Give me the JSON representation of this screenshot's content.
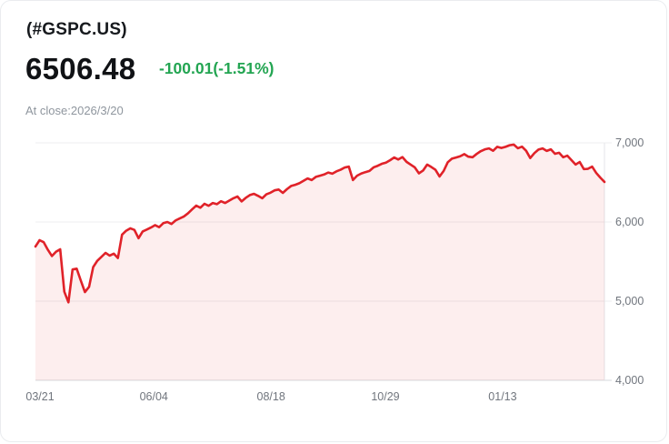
{
  "header": {
    "symbol": "(#GSPC.US)",
    "price": "6506.48",
    "change": "-100.01(-1.51%)",
    "as_of": "At close:2026/3/20"
  },
  "colors": {
    "line": "#e02229",
    "area_fill": "rgba(224,34,41,0.08)",
    "change_text": "#23a552",
    "grid": "#ececef",
    "axis_baseline": "#d6d9dd",
    "plot_right_border": "#e4e6ea",
    "tick_text": "#70757d"
  },
  "chart_data": {
    "type": "area",
    "title": "(#GSPC.US) price history, 2025/03/21 - 2026/03/20",
    "xlabel": "",
    "ylabel": "",
    "ylim": [
      4000,
      7000
    ],
    "grid": "horizontal",
    "legend": "none",
    "y_ticks": [
      {
        "value": 7000,
        "label": "7,000"
      },
      {
        "value": 6000,
        "label": "6,000"
      },
      {
        "value": 5000,
        "label": "5,000"
      },
      {
        "value": 4000,
        "label": "4,000"
      }
    ],
    "x_ticks": [
      {
        "label": "03/21",
        "f": 0.008
      },
      {
        "label": "06/04",
        "f": 0.208
      },
      {
        "label": "08/18",
        "f": 0.414
      },
      {
        "label": "10/29",
        "f": 0.615
      },
      {
        "label": "01/13",
        "f": 0.821
      }
    ],
    "last_value": 6506.48,
    "values": [
      5690,
      5770,
      5745,
      5650,
      5570,
      5625,
      5655,
      5120,
      4985,
      5400,
      5410,
      5260,
      5115,
      5180,
      5430,
      5510,
      5560,
      5610,
      5575,
      5600,
      5545,
      5840,
      5890,
      5920,
      5900,
      5795,
      5880,
      5905,
      5930,
      5960,
      5935,
      5985,
      6000,
      5975,
      6020,
      6045,
      6070,
      6110,
      6160,
      6207,
      6180,
      6230,
      6205,
      6240,
      6225,
      6262,
      6240,
      6270,
      6300,
      6322,
      6260,
      6305,
      6340,
      6356,
      6330,
      6300,
      6350,
      6370,
      6400,
      6410,
      6368,
      6415,
      6455,
      6470,
      6490,
      6520,
      6550,
      6530,
      6570,
      6585,
      6600,
      6625,
      6610,
      6640,
      6660,
      6688,
      6700,
      6530,
      6585,
      6612,
      6630,
      6645,
      6690,
      6710,
      6735,
      6750,
      6780,
      6815,
      6790,
      6820,
      6760,
      6725,
      6690,
      6615,
      6650,
      6725,
      6695,
      6660,
      6575,
      6645,
      6755,
      6800,
      6815,
      6830,
      6858,
      6825,
      6818,
      6860,
      6895,
      6918,
      6930,
      6900,
      6950,
      6935,
      6950,
      6970,
      6978,
      6932,
      6952,
      6900,
      6808,
      6870,
      6915,
      6930,
      6898,
      6918,
      6862,
      6875,
      6818,
      6838,
      6782,
      6726,
      6758,
      6668,
      6672,
      6700,
      6620,
      6560,
      6506.48
    ]
  }
}
